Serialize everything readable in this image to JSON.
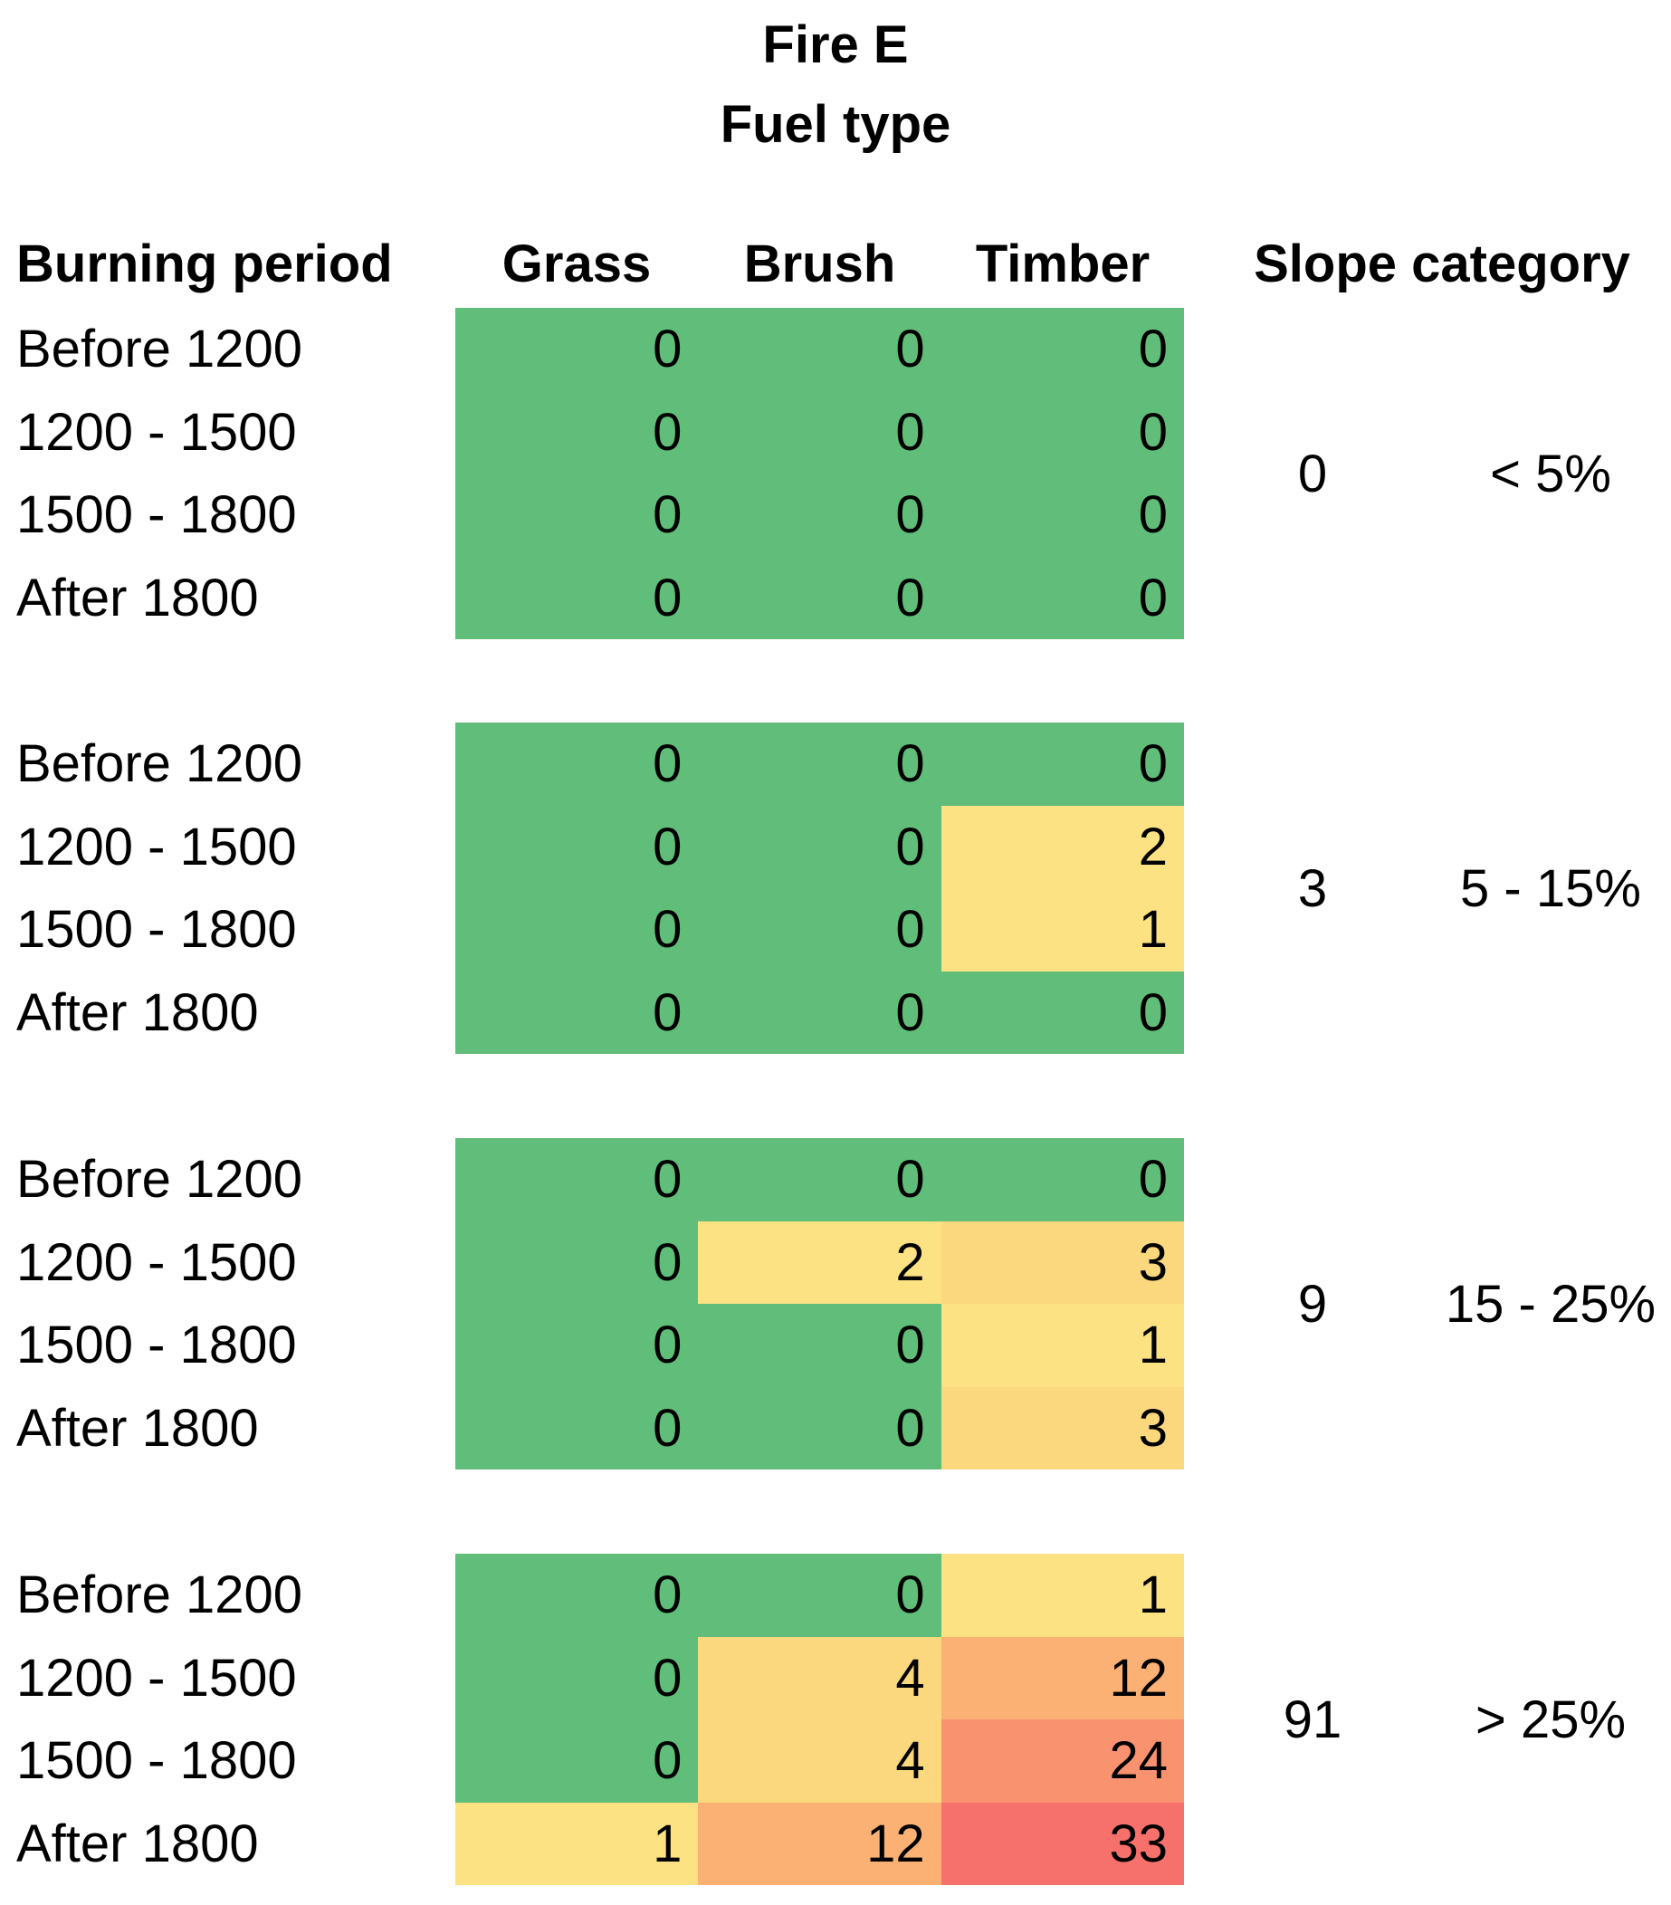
{
  "chart_data": {
    "type": "heatmap",
    "title": "Fire E",
    "subtitle": "Fuel type",
    "row_axis_label": "Burning period",
    "group_axis_label": "Slope category",
    "columns": [
      "Grass",
      "Brush",
      "Timber"
    ],
    "color_scale": {
      "low": "#61BD7A",
      "mid": "#FDE283",
      "high": "#F7716C"
    },
    "blocks": [
      {
        "slope_count": "0",
        "slope_range": "< 5%",
        "rows": [
          {
            "label": "Before 1200",
            "cells": [
              {
                "v": "0",
                "c": "#61BD7A"
              },
              {
                "v": "0",
                "c": "#61BD7A"
              },
              {
                "v": "0",
                "c": "#61BD7A"
              }
            ]
          },
          {
            "label": "1200 - 1500",
            "cells": [
              {
                "v": "0",
                "c": "#61BD7A"
              },
              {
                "v": "0",
                "c": "#61BD7A"
              },
              {
                "v": "0",
                "c": "#61BD7A"
              }
            ]
          },
          {
            "label": "1500 - 1800",
            "cells": [
              {
                "v": "0",
                "c": "#61BD7A"
              },
              {
                "v": "0",
                "c": "#61BD7A"
              },
              {
                "v": "0",
                "c": "#61BD7A"
              }
            ]
          },
          {
            "label": "After 1800",
            "cells": [
              {
                "v": "0",
                "c": "#61BD7A"
              },
              {
                "v": "0",
                "c": "#61BD7A"
              },
              {
                "v": "0",
                "c": "#61BD7A"
              }
            ]
          }
        ]
      },
      {
        "slope_count": "3",
        "slope_range": "5 - 15%",
        "rows": [
          {
            "label": "Before 1200",
            "cells": [
              {
                "v": "0",
                "c": "#61BD7A"
              },
              {
                "v": "0",
                "c": "#61BD7A"
              },
              {
                "v": "0",
                "c": "#61BD7A"
              }
            ]
          },
          {
            "label": "1200 - 1500",
            "cells": [
              {
                "v": "0",
                "c": "#61BD7A"
              },
              {
                "v": "0",
                "c": "#61BD7A"
              },
              {
                "v": "2",
                "c": "#FDE283"
              }
            ]
          },
          {
            "label": "1500 - 1800",
            "cells": [
              {
                "v": "0",
                "c": "#61BD7A"
              },
              {
                "v": "0",
                "c": "#61BD7A"
              },
              {
                "v": "1",
                "c": "#FDE283"
              }
            ]
          },
          {
            "label": "After 1800",
            "cells": [
              {
                "v": "0",
                "c": "#61BD7A"
              },
              {
                "v": "0",
                "c": "#61BD7A"
              },
              {
                "v": "0",
                "c": "#61BD7A"
              }
            ]
          }
        ]
      },
      {
        "slope_count": "9",
        "slope_range": "15 - 25%",
        "rows": [
          {
            "label": "Before 1200",
            "cells": [
              {
                "v": "0",
                "c": "#61BD7A"
              },
              {
                "v": "0",
                "c": "#61BD7A"
              },
              {
                "v": "0",
                "c": "#61BD7A"
              }
            ]
          },
          {
            "label": "1200 - 1500",
            "cells": [
              {
                "v": "0",
                "c": "#61BD7A"
              },
              {
                "v": "2",
                "c": "#FDE283"
              },
              {
                "v": "3",
                "c": "#FBD77E"
              }
            ]
          },
          {
            "label": "1500 - 1800",
            "cells": [
              {
                "v": "0",
                "c": "#61BD7A"
              },
              {
                "v": "0",
                "c": "#61BD7A"
              },
              {
                "v": "1",
                "c": "#FDE283"
              }
            ]
          },
          {
            "label": "After 1800",
            "cells": [
              {
                "v": "0",
                "c": "#61BD7A"
              },
              {
                "v": "0",
                "c": "#61BD7A"
              },
              {
                "v": "3",
                "c": "#FBD77E"
              }
            ]
          }
        ]
      },
      {
        "slope_count": "91",
        "slope_range": "> 25%",
        "rows": [
          {
            "label": "Before 1200",
            "cells": [
              {
                "v": "0",
                "c": "#61BD7A"
              },
              {
                "v": "0",
                "c": "#61BD7A"
              },
              {
                "v": "1",
                "c": "#FDE283"
              }
            ]
          },
          {
            "label": "1200 - 1500",
            "cells": [
              {
                "v": "0",
                "c": "#61BD7A"
              },
              {
                "v": "4",
                "c": "#FBD77E"
              },
              {
                "v": "12",
                "c": "#FAB173"
              }
            ]
          },
          {
            "label": "1500 - 1800",
            "cells": [
              {
                "v": "0",
                "c": "#61BD7A"
              },
              {
                "v": "4",
                "c": "#FBD77E"
              },
              {
                "v": "24",
                "c": "#F9926F"
              }
            ]
          },
          {
            "label": "After 1800",
            "cells": [
              {
                "v": "1",
                "c": "#FDE283"
              },
              {
                "v": "12",
                "c": "#FAB173"
              },
              {
                "v": "33",
                "c": "#F7716C"
              }
            ]
          }
        ]
      }
    ]
  }
}
